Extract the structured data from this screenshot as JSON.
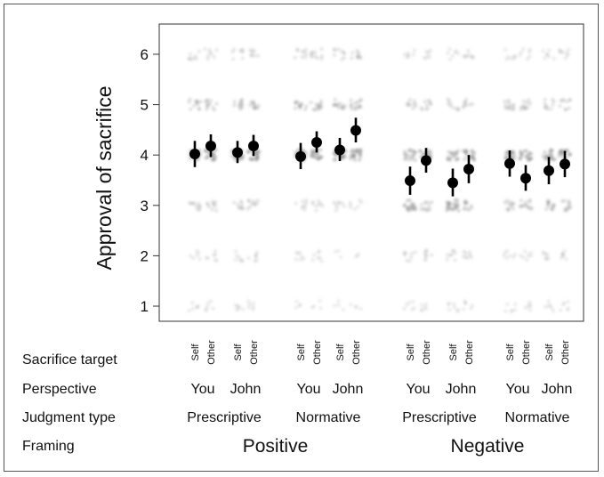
{
  "chart_data": {
    "type": "scatter",
    "ylabel": "Approval of sacrifice",
    "ylim": [
      0.7,
      6.6
    ],
    "yticks": [
      1,
      2,
      3,
      4,
      5,
      6
    ],
    "grid": false,
    "row_labels": {
      "target": "Sacrifice target",
      "perspective": "Perspective",
      "judgment": "Judgment type",
      "framing": "Framing"
    },
    "framing": [
      "Positive",
      "Negative"
    ],
    "judgment_types": [
      "Prescriptive",
      "Normative",
      "Prescriptive",
      "Normative"
    ],
    "perspectives": [
      "You",
      "John",
      "You",
      "John",
      "You",
      "John",
      "You",
      "John"
    ],
    "targets": [
      "Self",
      "Other",
      "Self",
      "Other",
      "Self",
      "Other",
      "Self",
      "Other",
      "Self",
      "Other",
      "Self",
      "Other",
      "Self",
      "Other",
      "Self",
      "Other"
    ],
    "points": [
      {
        "mean": 4.02,
        "lo": 3.76,
        "hi": 4.28
      },
      {
        "mean": 4.18,
        "lo": 3.96,
        "hi": 4.41
      },
      {
        "mean": 4.05,
        "lo": 3.84,
        "hi": 4.28
      },
      {
        "mean": 4.18,
        "lo": 3.98,
        "hi": 4.4
      },
      {
        "mean": 3.97,
        "lo": 3.72,
        "hi": 4.24
      },
      {
        "mean": 4.25,
        "lo": 4.05,
        "hi": 4.47
      },
      {
        "mean": 4.1,
        "lo": 3.88,
        "hi": 4.34
      },
      {
        "mean": 4.49,
        "lo": 4.25,
        "hi": 4.74
      },
      {
        "mean": 3.49,
        "lo": 3.21,
        "hi": 3.77
      },
      {
        "mean": 3.89,
        "lo": 3.65,
        "hi": 4.14
      },
      {
        "mean": 3.45,
        "lo": 3.18,
        "hi": 3.73
      },
      {
        "mean": 3.72,
        "lo": 3.44,
        "hi": 4.0
      },
      {
        "mean": 3.83,
        "lo": 3.57,
        "hi": 4.09
      },
      {
        "mean": 3.54,
        "lo": 3.29,
        "hi": 3.8
      },
      {
        "mean": 3.69,
        "lo": 3.42,
        "hi": 3.96
      },
      {
        "mean": 3.82,
        "lo": 3.56,
        "hi": 4.08
      }
    ],
    "raw_density": [
      [
        0.25,
        0.25,
        0.45,
        1.0,
        0.55,
        0.35
      ],
      [
        0.25,
        0.3,
        0.45,
        1.0,
        0.55,
        0.35
      ],
      [
        0.25,
        0.3,
        0.4,
        1.0,
        0.55,
        0.35
      ],
      [
        0.25,
        0.3,
        0.45,
        1.0,
        0.55,
        0.35
      ],
      [
        0.2,
        0.3,
        0.35,
        1.0,
        0.6,
        0.4
      ],
      [
        0.2,
        0.3,
        0.35,
        1.0,
        0.6,
        0.45
      ],
      [
        0.2,
        0.15,
        0.35,
        1.0,
        0.6,
        0.4
      ],
      [
        0.2,
        0.15,
        0.3,
        1.0,
        0.65,
        0.45
      ],
      [
        0.25,
        0.35,
        0.85,
        0.8,
        0.45,
        0.3
      ],
      [
        0.25,
        0.35,
        0.55,
        0.9,
        0.45,
        0.3
      ],
      [
        0.3,
        0.35,
        0.95,
        0.8,
        0.4,
        0.3
      ],
      [
        0.25,
        0.35,
        0.55,
        0.9,
        0.4,
        0.35
      ],
      [
        0.25,
        0.3,
        0.55,
        0.95,
        0.55,
        0.3
      ],
      [
        0.25,
        0.3,
        0.6,
        0.9,
        0.5,
        0.3
      ],
      [
        0.25,
        0.3,
        0.6,
        0.9,
        0.45,
        0.3
      ],
      [
        0.25,
        0.3,
        0.55,
        0.9,
        0.45,
        0.35
      ]
    ],
    "colors": {
      "point": "#000000",
      "raw": "#888888",
      "frame": "#333333"
    }
  }
}
